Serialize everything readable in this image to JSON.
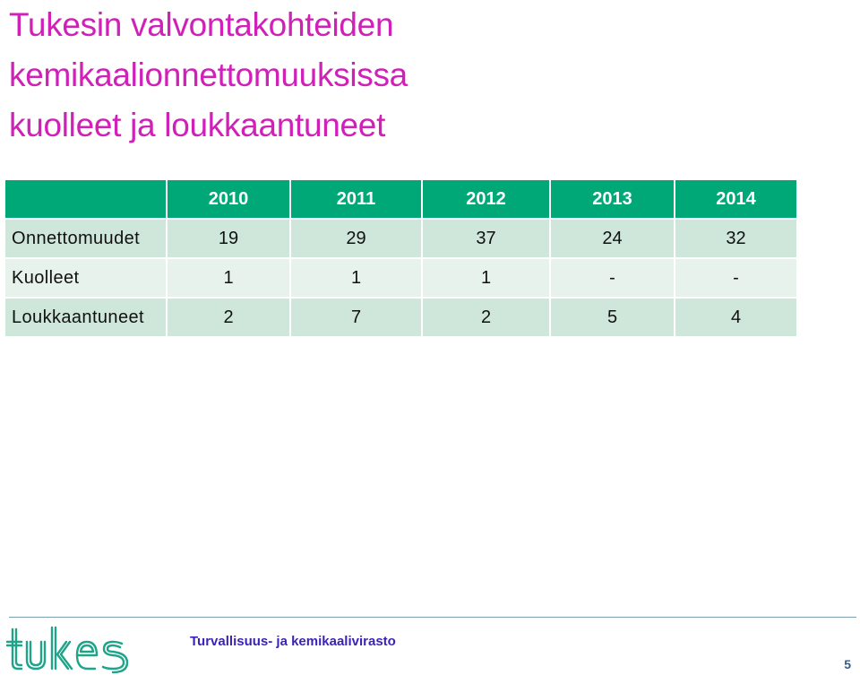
{
  "slide": {
    "title_lines": [
      "Tukesin valvontakohteiden",
      "kemikaalionnettomuuksissa",
      "kuolleet ja loukkaantuneet"
    ]
  },
  "table": {
    "years": [
      "2010",
      "2011",
      "2012",
      "2013",
      "2014"
    ],
    "rows": [
      {
        "label": "Onnettomuudet",
        "values": [
          "19",
          "29",
          "37",
          "24",
          "32"
        ]
      },
      {
        "label": "Kuolleet",
        "values": [
          "1",
          "1",
          "1",
          "-",
          "-"
        ]
      },
      {
        "label": "Loukkaantuneet",
        "values": [
          "2",
          "7",
          "2",
          "5",
          "4"
        ]
      }
    ]
  },
  "footer": {
    "logo": "tukes",
    "agency": "Turvallisuus- ja kemikaalivirasto",
    "page_number": "5"
  },
  "colors": {
    "title": "#d020b8",
    "header_fill": "#00a878",
    "row_odd": "#cfe7da",
    "row_even": "#e7f2ec",
    "logo": "#1fa389",
    "agency_text": "#3a24b8"
  }
}
